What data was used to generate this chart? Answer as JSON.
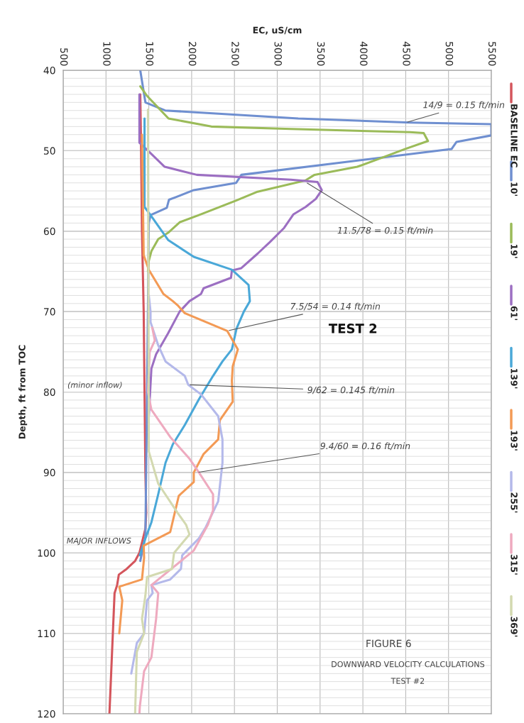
{
  "chart_data": {
    "type": "line",
    "xlabel": "EC, uS/cm",
    "ylabel": "Depth, ft from TOC",
    "xlim": [
      500,
      5500
    ],
    "xticks": [
      500,
      1000,
      1500,
      2000,
      2500,
      3000,
      3500,
      4000,
      4500,
      5000,
      5500
    ],
    "ylim": [
      120,
      40
    ],
    "yticks": [
      40,
      {
        "value": 41,
        "label": null
      },
      {
        "value": 42,
        "label": null
      },
      {
        "value": 43,
        "label": null
      },
      {
        "value": 44,
        "label": null
      },
      {
        "value": 45,
        "label": null
      },
      {
        "value": 46,
        "label": null
      },
      {
        "value": 47,
        "label": null
      },
      {
        "value": 48,
        "label": null
      },
      {
        "value": 49,
        "label": null
      },
      50,
      {
        "value": 51,
        "label": null
      },
      {
        "value": 52,
        "label": null
      },
      {
        "value": 53,
        "label": null
      },
      {
        "value": 54,
        "label": null
      },
      {
        "value": 55,
        "label": null
      },
      {
        "value": 56,
        "label": null
      },
      {
        "value": 57,
        "label": null
      },
      {
        "value": 58,
        "label": null
      },
      {
        "value": 59,
        "label": null
      },
      60,
      {
        "value": 61,
        "label": null
      },
      {
        "value": 62,
        "label": null
      },
      {
        "value": 63,
        "label": null
      },
      {
        "value": 64,
        "label": null
      },
      {
        "value": 65,
        "label": null
      },
      {
        "value": 66,
        "label": null
      },
      {
        "value": 67,
        "label": null
      },
      {
        "value": 68,
        "label": null
      },
      {
        "value": 69,
        "label": null
      },
      70,
      {
        "value": 71,
        "label": null
      },
      {
        "value": 72,
        "label": null
      },
      {
        "value": 73,
        "label": null
      },
      {
        "value": 74,
        "label": null
      },
      {
        "value": 75,
        "label": null
      },
      {
        "value": 76,
        "label": null
      },
      {
        "value": 77,
        "label": null
      },
      {
        "value": 78,
        "label": null
      },
      {
        "value": 79,
        "label": null
      },
      80,
      {
        "value": 81,
        "label": null
      },
      {
        "value": 82,
        "label": null
      },
      {
        "value": 83,
        "label": null
      },
      {
        "value": 84,
        "label": null
      },
      {
        "value": 85,
        "label": null
      },
      {
        "value": 86,
        "label": null
      },
      {
        "value": 87,
        "label": null
      },
      {
        "value": 88,
        "label": null
      },
      {
        "value": 89,
        "label": null
      },
      90,
      {
        "value": 91,
        "label": null
      },
      {
        "value": 92,
        "label": null
      },
      {
        "value": 93,
        "label": null
      },
      {
        "value": 94,
        "label": null
      },
      {
        "value": 95,
        "label": null
      },
      {
        "value": 96,
        "label": null
      },
      {
        "value": 97,
        "label": null
      },
      {
        "value": 98,
        "label": null
      },
      {
        "value": 99,
        "label": null
      },
      100,
      {
        "value": 101,
        "label": null
      },
      {
        "value": 102,
        "label": null
      },
      {
        "value": 103,
        "label": null
      },
      {
        "value": 104,
        "label": null
      },
      {
        "value": 105,
        "label": null
      },
      {
        "value": 106,
        "label": null
      },
      {
        "value": 107,
        "label": null
      },
      {
        "value": 108,
        "label": null
      },
      {
        "value": 109,
        "label": null
      },
      110,
      {
        "value": 111,
        "label": null
      },
      {
        "value": 112,
        "label": null
      },
      {
        "value": 113,
        "label": null
      },
      {
        "value": 114,
        "label": null
      },
      {
        "value": 115,
        "label": null
      },
      {
        "value": 116,
        "label": null
      },
      {
        "value": 117,
        "label": null
      },
      {
        "value": 118,
        "label": null
      },
      {
        "value": 119,
        "label": null
      },
      120
    ],
    "grid": true,
    "legend": "right",
    "line_style": "solid",
    "marker": "none",
    "series": [
      {
        "name": "BASELINE EC",
        "color": "#d4555c",
        "x": [
          1400,
          1410,
          1420,
          1430,
          1440,
          1450,
          1460,
          1470,
          1460,
          1390,
          1340,
          1240,
          1150,
          1130,
          1100,
          1080,
          1060,
          1040
        ],
        "values": [
          43,
          50,
          60,
          65,
          70,
          80,
          90,
          95,
          97,
          100,
          101,
          102,
          102.7,
          104,
          105,
          110,
          115,
          120
        ]
      },
      {
        "name": "10'",
        "color": "#6f8fd0",
        "x": [
          1400,
          1460,
          1690,
          3245,
          4555,
          5500,
          5500,
          5094,
          5035,
          2581,
          2520,
          2025,
          1810,
          1735,
          1710,
          1520,
          1500,
          1480,
          1460,
          1400
        ],
        "values": [
          40,
          44,
          45,
          46,
          46.5,
          46.7,
          48.1,
          48.9,
          49.8,
          53.0,
          54.0,
          54.9,
          55.8,
          56.1,
          57.1,
          58,
          59,
          80,
          98,
          101
        ]
      },
      {
        "name": "19'",
        "color": "#9bbb59",
        "x": [
          1400,
          1480,
          1730,
          2230,
          3160,
          4550,
          4710,
          4760,
          4490,
          4215,
          3935,
          3435,
          3330,
          2770,
          2520,
          2085,
          1860,
          1725,
          1610,
          1530,
          1500,
          1490
        ],
        "values": [
          42,
          43.2,
          46,
          47,
          47.3,
          47.7,
          47.8,
          48.8,
          49.8,
          50.9,
          52,
          53.0,
          53.7,
          55.1,
          56.2,
          58,
          58.9,
          60.2,
          61,
          62.5,
          63.7,
          65
        ]
      },
      {
        "name": "61'",
        "color": "#9c6fc2",
        "x": [
          1390,
          1390,
          1490,
          1685,
          2060,
          3160,
          3470,
          3520,
          3450,
          3330,
          3190,
          3080,
          2910,
          2770,
          2580,
          2470,
          2460,
          2140,
          2110,
          1975,
          1860,
          1725,
          1585,
          1530,
          1500
        ],
        "values": [
          43,
          49,
          50,
          52,
          53,
          53.6,
          53.9,
          54.9,
          56,
          57,
          57.9,
          59.6,
          61.4,
          62.8,
          64.6,
          64.9,
          65.8,
          67.1,
          67.8,
          68.7,
          70,
          72.7,
          75.3,
          77.1,
          83
        ]
      },
      {
        "name": "139'",
        "color": "#4aa8d8",
        "x": [
          1450,
          1450,
          1520,
          1725,
          2025,
          2470,
          2665,
          2680,
          2610,
          2525,
          2470,
          2360,
          2250,
          2085,
          1920,
          1780,
          1695,
          1610,
          1530,
          1460,
          1395
        ],
        "values": [
          46,
          57,
          58,
          61.1,
          63.2,
          64.8,
          66.7,
          68.7,
          70,
          72.1,
          74.7,
          76.2,
          78,
          80.9,
          84.1,
          86.5,
          88.8,
          92.7,
          96.2,
          98.2,
          100.3
        ]
      },
      {
        "name": "193'",
        "color": "#f39a55",
        "x": [
          1420,
          1440,
          1500,
          1670,
          1780,
          1835,
          1920,
          2415,
          2540,
          2480,
          2470,
          2480,
          2330,
          2310,
          2140,
          2025,
          2025,
          1850,
          1810,
          1750,
          1440,
          1445,
          1420,
          1155,
          1190,
          1155
        ],
        "values": [
          48,
          63,
          64.8,
          67.8,
          68.7,
          69.2,
          70.2,
          72.4,
          74.7,
          76.8,
          78.6,
          81.2,
          83.5,
          85.9,
          87.7,
          90,
          91.2,
          92.9,
          94.7,
          97.4,
          99.1,
          100.6,
          103.3,
          104.2,
          105.9,
          110
        ]
      },
      {
        "name": "255'",
        "color": "#b4b9ea",
        "x": [
          1500,
          1520,
          1520,
          1610,
          1695,
          1920,
          1960,
          2110,
          2310,
          2360,
          2360,
          2310,
          2165,
          2085,
          1890,
          1875,
          1750,
          1530,
          1545,
          1480,
          1445,
          1360,
          1295
        ],
        "values": [
          68,
          70,
          71.3,
          74.2,
          76.2,
          78,
          79.1,
          80.3,
          83,
          85.9,
          88.8,
          93.6,
          96.8,
          98.2,
          100.3,
          102,
          103.3,
          104,
          105,
          105.9,
          110,
          111.2,
          115
        ]
      },
      {
        "name": "315'",
        "color": "#eeaabf",
        "x": [
          1540,
          1570,
          1510,
          1490,
          1530,
          1750,
          1975,
          2085,
          2250,
          2250,
          2190,
          2025,
          1530,
          1610,
          1585,
          1530,
          1445,
          1395,
          1390
        ],
        "values": [
          72,
          73.6,
          75,
          80,
          82.2,
          85.6,
          88.3,
          90,
          92.7,
          94.7,
          96.5,
          99.7,
          104,
          105,
          108.2,
          113,
          114.7,
          119.1,
          120
        ]
      },
      {
        "name": "369'",
        "color": "#d3d9b0",
        "x": [
          1490,
          1500,
          1610,
          1835,
          1935,
          1975,
          1795,
          1770,
          1480,
          1460,
          1420,
          1445,
          1360,
          1340
        ],
        "values": [
          44.9,
          87.4,
          91.4,
          95,
          96.5,
          97.7,
          100,
          102,
          103,
          105.3,
          108.2,
          110,
          112.3,
          120
        ]
      }
    ],
    "annotations": [
      {
        "text": "14/9 = 0.15 ft/min",
        "x": 4500,
        "y": 46.5
      },
      {
        "text": "11.5/78 = 0.15 ft/min",
        "x": 3330,
        "y": 53.9
      },
      {
        "text": "7.5/54 = 0.14 ft/min",
        "x": 2415,
        "y": 72.4
      },
      {
        "text": "9/62 = 0.145 ft/min",
        "x": 1960,
        "y": 79.1
      },
      {
        "text": "9.4/60 = 0.16 ft/min",
        "x": 2060,
        "y": 90
      },
      "TEST 2",
      "(minor inflow)",
      "MAJOR INFLOWS",
      "FIGURE 6",
      "DOWNWARD VELOCITY CALCULATIONS",
      "TEST #2"
    ]
  }
}
